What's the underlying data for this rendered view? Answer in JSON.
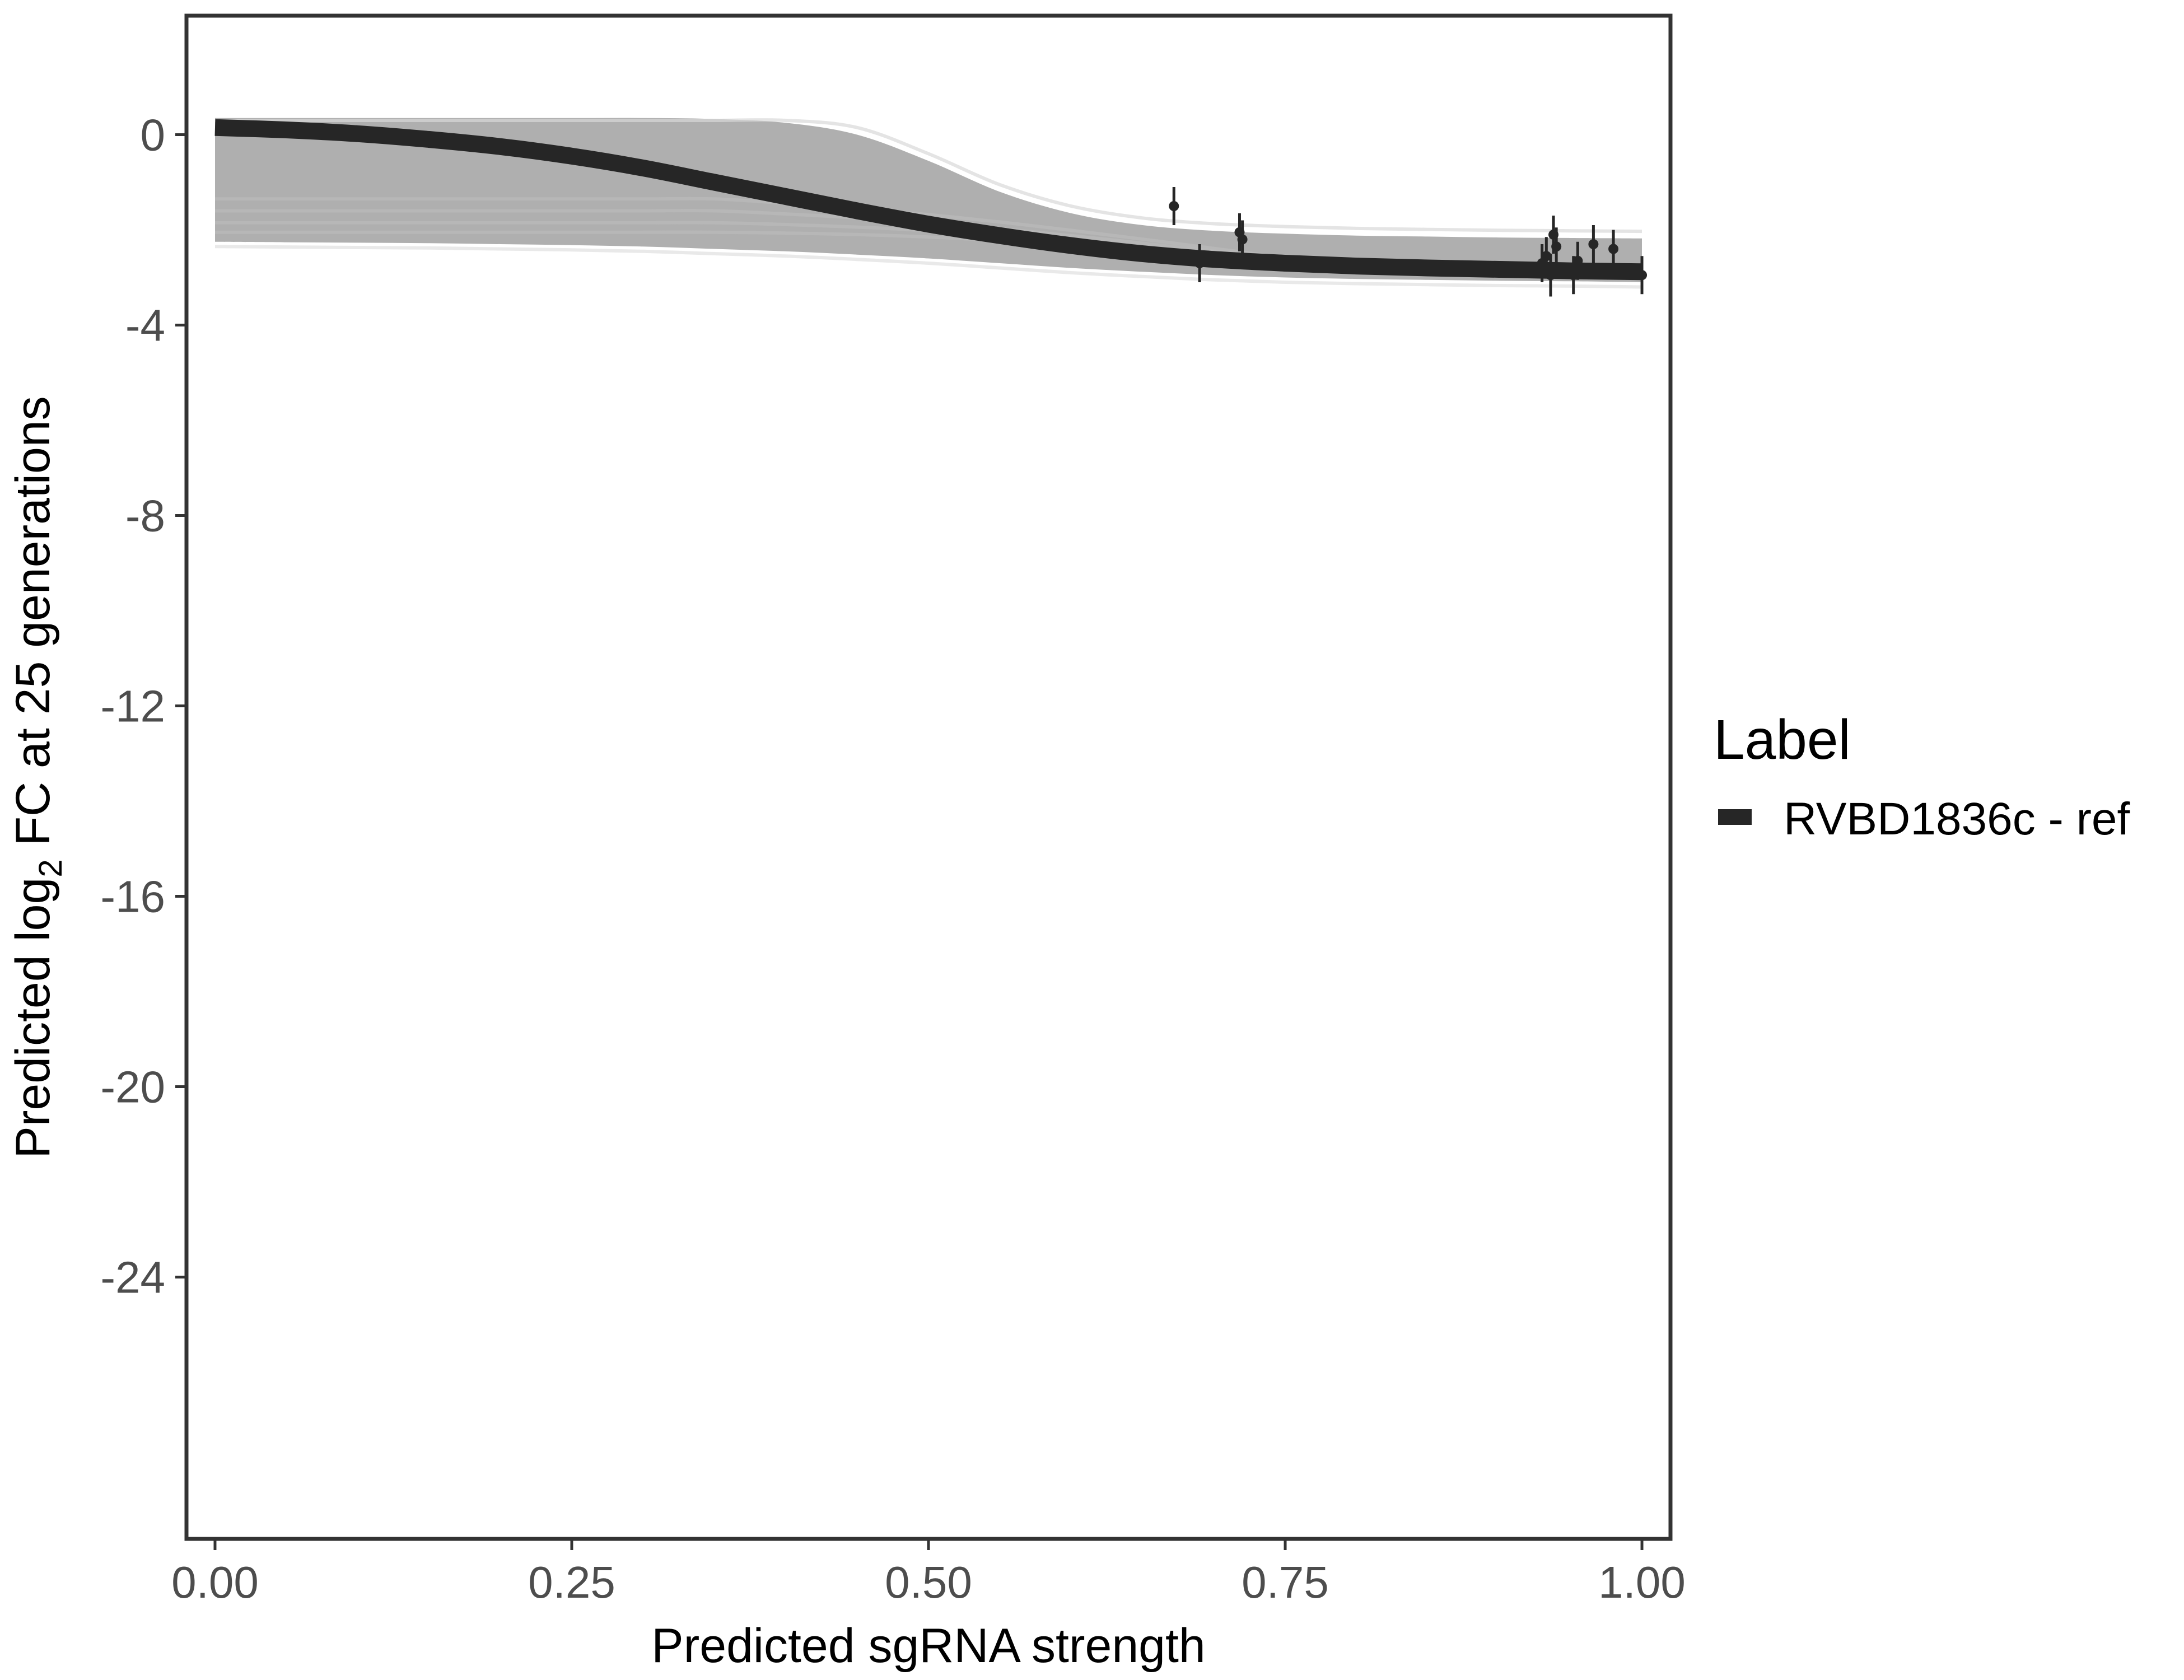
{
  "chart_data": {
    "type": "line",
    "xlabel": "Predicted sgRNA strength",
    "ylabel_prefix": "Predicted  log",
    "ylabel_subscript": "2",
    "ylabel_suffix": " FC at 25 generations",
    "xlim": [
      -0.02,
      1.02
    ],
    "ylim": [
      -29.5,
      2.5
    ],
    "x_ticks": [
      {
        "value": 0.0,
        "label": "0.00"
      },
      {
        "value": 0.25,
        "label": "0.25"
      },
      {
        "value": 0.5,
        "label": "0.50"
      },
      {
        "value": 0.75,
        "label": "0.75"
      },
      {
        "value": 1.0,
        "label": "1.00"
      }
    ],
    "y_ticks": [
      {
        "value": 0,
        "label": "0"
      },
      {
        "value": -4,
        "label": "-4"
      },
      {
        "value": -8,
        "label": "-8"
      },
      {
        "value": -12,
        "label": "-12"
      },
      {
        "value": -16,
        "label": "-16"
      },
      {
        "value": -20,
        "label": "-20"
      },
      {
        "value": -24,
        "label": "-24"
      }
    ],
    "grid": false,
    "legend": {
      "title": "Label",
      "placement": "right",
      "entries": [
        {
          "label": "RVBD1836c - ref",
          "color": "#262626"
        }
      ]
    },
    "series": [
      {
        "name": "RVBD1836c - ref",
        "color": "#262626",
        "fit": {
          "x": [
            0.0,
            0.05,
            0.1,
            0.15,
            0.2,
            0.25,
            0.3,
            0.35,
            0.4,
            0.45,
            0.5,
            0.55,
            0.6,
            0.65,
            0.7,
            0.75,
            0.8,
            0.85,
            0.9,
            0.95,
            1.0
          ],
          "y": [
            0.15,
            0.1,
            0.02,
            -0.1,
            -0.25,
            -0.45,
            -0.7,
            -1.0,
            -1.3,
            -1.6,
            -1.88,
            -2.12,
            -2.33,
            -2.5,
            -2.62,
            -2.7,
            -2.76,
            -2.8,
            -2.83,
            -2.86,
            -2.88
          ]
        },
        "points": [
          {
            "x": 0.672,
            "y": -1.5,
            "err": 0.4
          },
          {
            "x": 0.69,
            "y": -2.7,
            "err": 0.4
          },
          {
            "x": 0.718,
            "y": -2.05,
            "err": 0.4
          },
          {
            "x": 0.72,
            "y": -2.2,
            "err": 0.4
          },
          {
            "x": 0.93,
            "y": -2.7,
            "err": 0.4
          },
          {
            "x": 0.933,
            "y": -2.55,
            "err": 0.4
          },
          {
            "x": 0.936,
            "y": -2.95,
            "err": 0.45
          },
          {
            "x": 0.938,
            "y": -2.1,
            "err": 0.4
          },
          {
            "x": 0.94,
            "y": -2.35,
            "err": 0.4
          },
          {
            "x": 0.952,
            "y": -2.95,
            "err": 0.4
          },
          {
            "x": 0.955,
            "y": -2.65,
            "err": 0.4
          },
          {
            "x": 0.966,
            "y": -2.3,
            "err": 0.4
          },
          {
            "x": 0.98,
            "y": -2.4,
            "err": 0.4
          },
          {
            "x": 1.0,
            "y": -2.95,
            "err": 0.4
          }
        ]
      }
    ],
    "posterior_band": {
      "color": "#a6a6a6",
      "upper_y": [
        0.35,
        0.35,
        0.35,
        0.35,
        0.35,
        0.35,
        0.35,
        0.33,
        0.25,
        0.0,
        -0.55,
        -1.2,
        -1.65,
        -1.9,
        -2.02,
        -2.08,
        -2.12,
        -2.14,
        -2.16,
        -2.17,
        -2.18
      ],
      "lower_y": [
        -2.25,
        -2.26,
        -2.27,
        -2.28,
        -2.3,
        -2.32,
        -2.35,
        -2.4,
        -2.45,
        -2.52,
        -2.6,
        -2.7,
        -2.8,
        -2.88,
        -2.95,
        -3.0,
        -3.03,
        -3.05,
        -3.07,
        -3.08,
        -3.1
      ]
    }
  }
}
